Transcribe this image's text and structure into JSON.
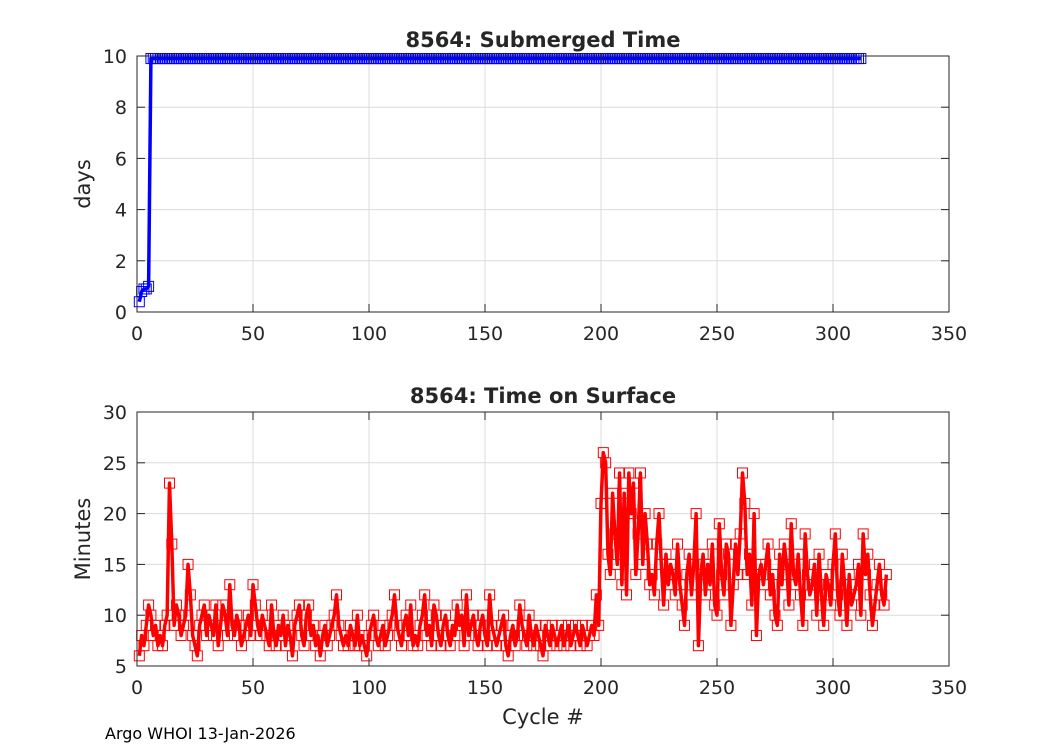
{
  "footer": "Argo WHOI 13-Jan-2026",
  "chart_data": [
    {
      "type": "line",
      "title": "8564: Submerged Time",
      "xlabel": "",
      "ylabel": "days",
      "xlim": [
        0,
        350
      ],
      "ylim": [
        0,
        10
      ],
      "xticks": [
        0,
        50,
        100,
        150,
        200,
        250,
        300,
        350
      ],
      "yticks": [
        0,
        2,
        4,
        6,
        8,
        10
      ],
      "grid": true,
      "marker": "square",
      "color": "#0000ff",
      "series": [
        {
          "x": [
            1,
            2,
            3,
            4,
            5,
            6
          ],
          "y": [
            0.4,
            0.8,
            0.9,
            0.9,
            1.0,
            9.9
          ],
          "steady_from_x": 7,
          "steady_to_x": 312,
          "steady_y": 9.9
        }
      ]
    },
    {
      "type": "line",
      "title": "8564: Time on Surface",
      "xlabel": "Cycle #",
      "ylabel": "Minutes",
      "xlim": [
        0,
        350
      ],
      "ylim": [
        5,
        30
      ],
      "xticks": [
        0,
        50,
        100,
        150,
        200,
        250,
        300,
        350
      ],
      "yticks": [
        5,
        10,
        15,
        20,
        25,
        30
      ],
      "grid": true,
      "marker": "square",
      "color": "#ff0000",
      "series": [
        {
          "x_start": 1,
          "y": [
            6,
            8,
            7,
            9,
            11,
            10,
            8,
            9,
            7,
            8,
            7,
            9,
            10,
            23,
            17,
            9,
            11,
            10,
            8,
            9,
            10,
            15,
            12,
            8,
            7,
            6,
            9,
            10,
            11,
            8,
            10,
            9,
            8,
            11,
            7,
            9,
            11,
            10,
            8,
            13,
            9,
            8,
            10,
            9,
            7,
            8,
            9,
            10,
            8,
            13,
            11,
            9,
            8,
            10,
            9,
            8,
            7,
            11,
            8,
            7,
            9,
            8,
            10,
            7,
            9,
            8,
            6,
            9,
            10,
            11,
            8,
            7,
            10,
            11,
            8,
            9,
            7,
            8,
            6,
            8,
            9,
            7,
            8,
            9,
            10,
            12,
            9,
            8,
            7,
            8,
            7,
            9,
            8,
            7,
            10,
            7,
            8,
            7,
            6,
            8,
            9,
            10,
            8,
            7,
            8,
            9,
            7,
            8,
            9,
            10,
            12,
            9,
            8,
            7,
            9,
            10,
            8,
            11,
            7,
            8,
            7,
            9,
            10,
            12,
            8,
            9,
            7,
            11,
            10,
            8,
            7,
            9,
            10,
            8,
            7,
            9,
            8,
            11,
            9,
            10,
            7,
            12,
            8,
            9,
            10,
            8,
            7,
            9,
            10,
            8,
            7,
            12,
            9,
            8,
            7,
            8,
            9,
            10,
            7,
            6,
            8,
            9,
            7,
            8,
            11,
            9,
            8,
            7,
            10,
            8,
            7,
            9,
            8,
            7,
            6,
            9,
            8,
            7,
            9,
            8,
            7,
            8,
            9,
            7,
            8,
            9,
            7,
            8,
            9,
            8,
            7,
            9,
            8,
            7,
            8,
            9,
            8,
            12,
            9,
            21,
            26,
            25,
            16,
            14,
            22,
            18,
            15,
            24,
            13,
            22,
            12,
            24,
            20,
            23,
            14,
            18,
            24,
            15,
            20,
            17,
            13,
            14,
            12,
            17,
            20,
            15,
            11,
            16,
            13,
            15,
            14,
            12,
            17,
            13,
            11,
            9,
            14,
            16,
            12,
            15,
            20,
            7,
            14,
            16,
            12,
            15,
            13,
            17,
            11,
            10,
            19,
            14,
            12,
            17,
            16,
            9,
            13,
            17,
            14,
            18,
            24,
            21,
            14,
            16,
            11,
            20,
            8,
            14,
            15,
            13,
            15,
            17,
            12,
            14,
            10,
            9,
            16,
            13,
            17,
            15,
            11,
            19,
            14,
            13,
            16,
            12,
            9,
            18,
            14,
            12,
            13,
            15,
            10,
            16,
            12,
            9,
            14,
            13,
            11,
            15,
            18,
            12,
            10,
            16,
            13,
            9,
            14,
            11,
            12,
            13,
            15,
            10,
            18,
            14,
            16,
            12,
            9,
            11,
            13,
            15,
            12,
            11,
            14
          ]
        }
      ]
    }
  ]
}
